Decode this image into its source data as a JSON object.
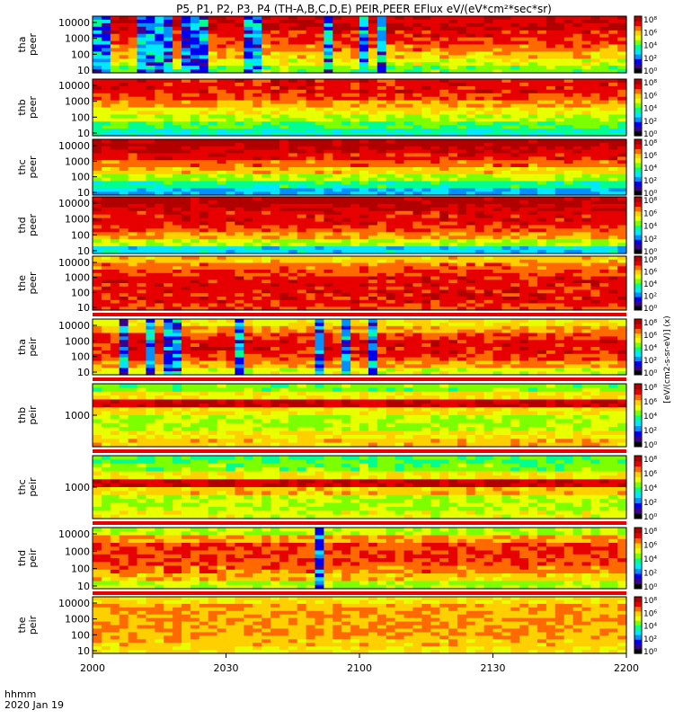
{
  "chart_data": {
    "type": "heatmap",
    "title": "P5, P1, P2, P3, P4 (TH-A,B,C,D,E) PEIR,PEER EFlux eV/(eV*cm²*sec*sr)",
    "x_axis": {
      "range": [
        "2000",
        "2200"
      ],
      "tick_labels": [
        "2000",
        "2030",
        "2100",
        "2130",
        "2200"
      ],
      "label_line1": "hhmm",
      "label_line2": "2020 Jan 19"
    },
    "colorbar_title": "[eV/(cm2-s-sr-eV)] (x)",
    "colorbar_ticks": [
      "10⁰",
      "10²",
      "10⁴",
      "10⁶",
      "10⁸"
    ],
    "colormap": [
      "#000000",
      "#3c0090",
      "#0000f0",
      "#0090ff",
      "#00e8ff",
      "#00ff90",
      "#7cff00",
      "#e8ff00",
      "#ffd000",
      "#ff6a00",
      "#e60000",
      "#b00000"
    ],
    "panels": [
      {
        "name": "tha",
        "species": "peer",
        "yscale": "log",
        "y_ticks": [
          "10",
          "100",
          "1000",
          "10000"
        ],
        "flag_bar": false,
        "levels": [
          10.5,
          10.5,
          10,
          9.5,
          9,
          8,
          7,
          6
        ],
        "burst_columns": [
          0.01,
          0.08,
          0.11,
          0.13,
          0.17,
          0.19,
          0.29,
          0.43,
          0.5,
          0.53
        ]
      },
      {
        "name": "thb",
        "species": "peer",
        "yscale": "log",
        "y_ticks": [
          "10",
          "100",
          "1000",
          "10000"
        ],
        "flag_bar": false,
        "levels": [
          10,
          10,
          9.5,
          8.5,
          7.5,
          6.5,
          5.5,
          4.5
        ],
        "burst_columns": []
      },
      {
        "name": "thc",
        "species": "peer",
        "yscale": "log",
        "y_ticks": [
          "10",
          "100",
          "1000",
          "10000"
        ],
        "flag_bar": false,
        "levels": [
          11,
          10.5,
          10,
          9,
          8,
          6.5,
          5,
          3.5
        ],
        "burst_columns": []
      },
      {
        "name": "thd",
        "species": "peer",
        "yscale": "log",
        "y_ticks": [
          "10",
          "100",
          "1000",
          "10000"
        ],
        "flag_bar": false,
        "levels": [
          11,
          10.5,
          10,
          10,
          9.5,
          8.5,
          6.5,
          4
        ],
        "burst_columns": []
      },
      {
        "name": "the",
        "species": "peer",
        "yscale": "log",
        "y_ticks": [
          "10",
          "100",
          "1000",
          "10000"
        ],
        "flag_bar": true,
        "levels": [
          8,
          9,
          9.5,
          10,
          10,
          10,
          10,
          9.5
        ],
        "burst_columns": []
      },
      {
        "name": "tha",
        "species": "peir",
        "yscale": "log",
        "y_ticks": [
          "10",
          "100",
          "1000",
          "10000"
        ],
        "flag_bar": true,
        "levels": [
          7.5,
          8.5,
          9.5,
          10,
          10,
          9.5,
          8.5,
          7
        ],
        "burst_columns": [
          0.05,
          0.1,
          0.13,
          0.15,
          0.27,
          0.42,
          0.47,
          0.52
        ]
      },
      {
        "name": "thb",
        "species": "peir",
        "yscale": "log",
        "y_ticks": [
          "1000"
        ],
        "flag_bar": true,
        "levels": [
          6,
          7.5,
          10.5,
          7.5,
          6.5,
          6.5,
          7.5,
          8
        ],
        "burst_columns": []
      },
      {
        "name": "thc",
        "species": "peir",
        "yscale": "log",
        "y_ticks": [
          "1000"
        ],
        "flag_bar": true,
        "levels": [
          5.5,
          6,
          7.5,
          10.5,
          8,
          6.5,
          6.5,
          7
        ],
        "burst_columns": []
      },
      {
        "name": "thd",
        "species": "peir",
        "yscale": "log",
        "y_ticks": [
          "10",
          "100",
          "1000",
          "10000"
        ],
        "flag_bar": true,
        "levels": [
          6.5,
          8.5,
          9.5,
          9.5,
          9.5,
          9,
          8,
          6.5
        ],
        "burst_columns": [
          0.42
        ]
      },
      {
        "name": "the",
        "species": "peir",
        "yscale": "log",
        "y_ticks": [
          "10",
          "100",
          "1000",
          "10000"
        ],
        "flag_bar": false,
        "levels": [
          7.5,
          8.5,
          8.5,
          8.5,
          8.5,
          8.5,
          8,
          7.5
        ],
        "burst_columns": []
      }
    ]
  }
}
